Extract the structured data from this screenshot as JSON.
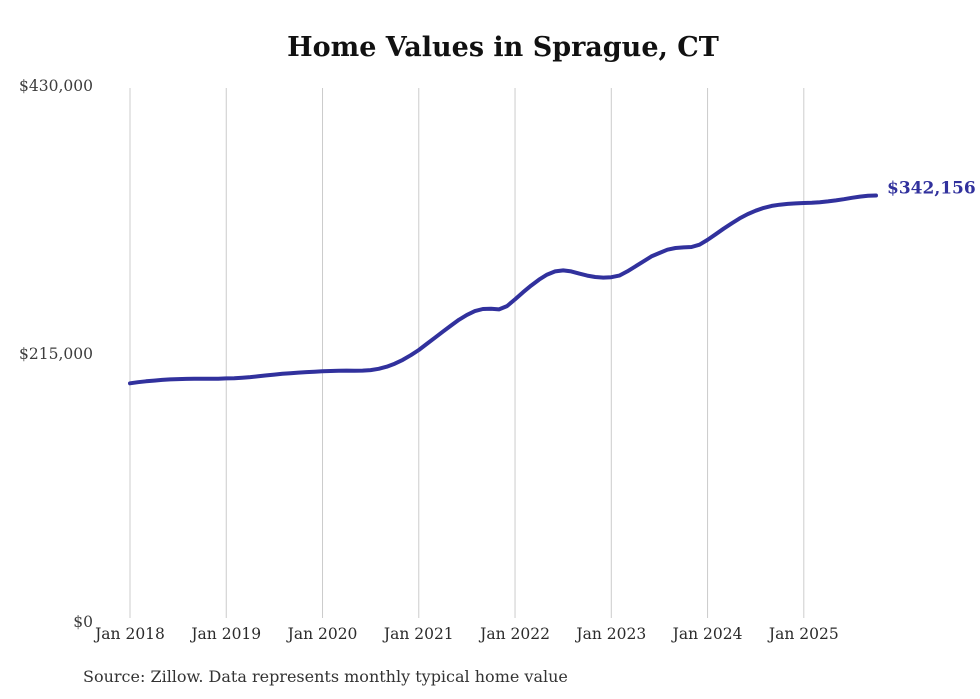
{
  "title": "Home Values in Sprague, CT",
  "source_note": "Source: Zillow. Data represents monthly typical home value",
  "colors": {
    "line": "#31319d",
    "latest_value_label": "#31319d",
    "grid": "#cccccc",
    "axis_text": "#3d3d3d",
    "title_text": "#111111",
    "background": "#ffffff"
  },
  "chart_data": {
    "type": "line",
    "title": "Home Values in Sprague, CT",
    "xlabel": "",
    "ylabel": "",
    "grid": "vertical-only",
    "legend": "none",
    "ylim": [
      0,
      430000
    ],
    "y_ticks": [
      0,
      215000,
      430000
    ],
    "y_tick_labels": [
      "$0",
      "$215,000",
      "$430,000"
    ],
    "x_tick_labels": [
      "Jan 2018",
      "Jan 2019",
      "Jan 2020",
      "Jan 2021",
      "Jan 2022",
      "Jan 2023",
      "Jan 2024",
      "Jan 2025"
    ],
    "x_tick_month_interval": 12,
    "start_month": "2018-01",
    "end_month": "2025-10",
    "last_value": 342156,
    "last_value_label": "$342,156",
    "series": [
      {
        "name": "Monthly typical home value",
        "values": [
          191500,
          192400,
          193100,
          193700,
          194200,
          194600,
          194900,
          195000,
          195100,
          195100,
          195200,
          195200,
          195400,
          195600,
          196000,
          196500,
          197100,
          197800,
          198500,
          199100,
          199600,
          200100,
          200500,
          200800,
          201100,
          201400,
          201600,
          201700,
          201600,
          201700,
          202100,
          203100,
          204800,
          207200,
          210300,
          214000,
          218200,
          223100,
          228000,
          232900,
          237800,
          242400,
          246400,
          249400,
          251100,
          251300,
          250800,
          253400,
          258800,
          264600,
          269900,
          274700,
          278700,
          281300,
          282100,
          281300,
          279500,
          277900,
          276800,
          276300,
          276600,
          277900,
          281300,
          285300,
          289300,
          293300,
          296000,
          298700,
          300000,
          300500,
          300800,
          302700,
          306500,
          311000,
          315500,
          319800,
          323800,
          327200,
          330000,
          332200,
          333800,
          334800,
          335400,
          335800,
          336100,
          336400,
          336800,
          337400,
          338200,
          339200,
          340300,
          341300,
          341900,
          342156
        ]
      }
    ]
  }
}
